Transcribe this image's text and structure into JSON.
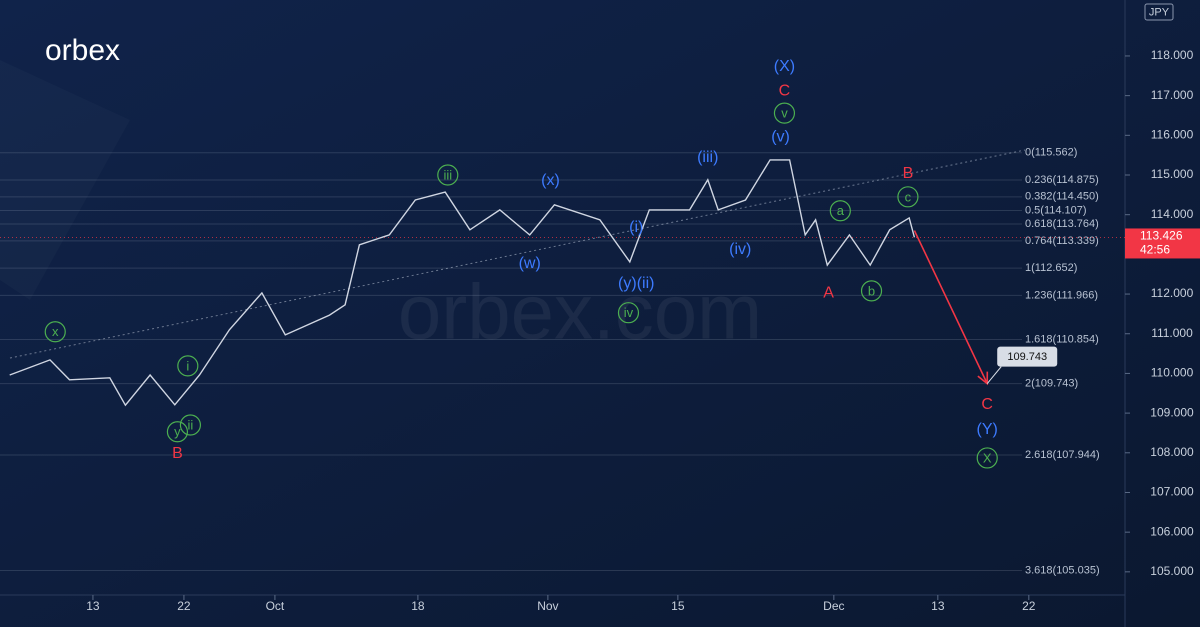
{
  "chart_data": {
    "type": "line",
    "brand": "orbex",
    "watermark": "orbex.com",
    "currency": "JPY",
    "xlim": [
      -7.15,
      79.4
    ],
    "xticks": [
      {
        "value": 0,
        "label": "13"
      },
      {
        "value": 7,
        "label": "22"
      },
      {
        "value": 14,
        "label": "Oct"
      },
      {
        "value": 25,
        "label": "18"
      },
      {
        "value": 35,
        "label": "Nov"
      },
      {
        "value": 45,
        "label": "15"
      },
      {
        "value": 57,
        "label": "Dec"
      },
      {
        "value": 65,
        "label": "13"
      },
      {
        "value": 72,
        "label": "22"
      }
    ],
    "ylim": [
      103.61,
      119.41
    ],
    "yticks": [
      {
        "value": 105,
        "label": "105.000"
      },
      {
        "value": 106,
        "label": "106.000"
      },
      {
        "value": 107,
        "label": "107.000"
      },
      {
        "value": 108,
        "label": "108.000"
      },
      {
        "value": 109,
        "label": "109.000"
      },
      {
        "value": 110,
        "label": "110.000"
      },
      {
        "value": 111,
        "label": "111.000"
      },
      {
        "value": 112,
        "label": "112.000"
      },
      {
        "value": 113,
        "label": "113.000"
      },
      {
        "value": 114,
        "label": "114.000"
      },
      {
        "value": 115,
        "label": "115.000"
      },
      {
        "value": 116,
        "label": "116.000"
      },
      {
        "value": 117,
        "label": "117.000"
      },
      {
        "value": 118,
        "label": "118.000"
      }
    ],
    "series": [
      {
        "color": "#d0d6e2",
        "x": [
          -6.4,
          -3.3,
          -1.8,
          1.3,
          2.5,
          4.4,
          6.3,
          8.2,
          10.5,
          13,
          14.8,
          18.2,
          19.4,
          20.5,
          22.8,
          24.8,
          27.1,
          29,
          31.3,
          33.6,
          35.5,
          39,
          41.3,
          42.8,
          45.9,
          47.3,
          48.1,
          50.2,
          52.1,
          53.6,
          54.8,
          55.6,
          56.5,
          58.2,
          59.8,
          61.3,
          62.8,
          63.2
        ],
        "values": [
          109.96,
          110.34,
          109.84,
          109.89,
          109.2,
          109.96,
          109.21,
          109.96,
          111.1,
          112.03,
          110.97,
          111.47,
          111.73,
          113.24,
          113.49,
          114.37,
          114.57,
          113.62,
          114.12,
          113.49,
          114.25,
          113.87,
          112.81,
          114.12,
          114.12,
          114.88,
          114.12,
          114.37,
          115.38,
          115.38,
          113.49,
          113.87,
          112.73,
          113.49,
          112.73,
          113.62,
          113.92,
          113.43
        ]
      }
    ],
    "last_price": {
      "value": 113.426,
      "countdown": "42:56",
      "color": "#f23645"
    },
    "projection": {
      "x": [
        63.2,
        68.8
      ],
      "values": [
        113.6,
        109.743
      ],
      "color": "#f23645"
    },
    "fib_levels": [
      {
        "label": "0(115.562)",
        "value": 115.562
      },
      {
        "label": "0.236(114.875)",
        "value": 114.875
      },
      {
        "label": "0.382(114.450)",
        "value": 114.45
      },
      {
        "label": "0.5(114.107)",
        "value": 114.107
      },
      {
        "label": "0.618(113.764)",
        "value": 113.764
      },
      {
        "label": "0.764(113.339)",
        "value": 113.339
      },
      {
        "label": "1(112.652)",
        "value": 112.652
      },
      {
        "label": "1.236(111.966)",
        "value": 111.966
      },
      {
        "label": "1.618(110.854)",
        "value": 110.854
      },
      {
        "label": "2(109.743)",
        "value": 109.743
      },
      {
        "label": "2.618(107.944)",
        "value": 107.944
      },
      {
        "label": "3.618(105.035)",
        "value": 105.035
      }
    ],
    "wave_labels": [
      {
        "text": "x",
        "x": -2.9,
        "value": 111.05,
        "color": "#4caf50",
        "circled": true
      },
      {
        "text": "i",
        "x": 7.3,
        "value": 110.19,
        "color": "#4caf50",
        "circled": true
      },
      {
        "text": "ii",
        "x": 7.5,
        "value": 108.7,
        "color": "#4caf50",
        "circled": true
      },
      {
        "text": "y",
        "x": 6.5,
        "value": 108.53,
        "color": "#4caf50",
        "circled": true
      },
      {
        "text": "B",
        "x": 6.5,
        "value": 108.0,
        "color": "#f23645",
        "circled": false
      },
      {
        "text": "iii",
        "x": 27.3,
        "value": 115.0,
        "color": "#4caf50",
        "circled": true
      },
      {
        "text": "(x)",
        "x": 35.2,
        "value": 114.88,
        "color": "#3d7bff",
        "circled": false
      },
      {
        "text": "(w)",
        "x": 33.6,
        "value": 112.79,
        "color": "#3d7bff",
        "circled": false
      },
      {
        "text": "(i)",
        "x": 41.8,
        "value": 113.69,
        "color": "#3d7bff",
        "circled": false
      },
      {
        "text": "(y)(ii)",
        "x": 41.8,
        "value": 112.28,
        "color": "#3d7bff",
        "circled": false
      },
      {
        "text": "iv",
        "x": 41.2,
        "value": 111.53,
        "color": "#4caf50",
        "circled": true
      },
      {
        "text": "(iii)",
        "x": 47.3,
        "value": 115.46,
        "color": "#3d7bff",
        "circled": false
      },
      {
        "text": "(iv)",
        "x": 49.8,
        "value": 113.14,
        "color": "#3d7bff",
        "circled": false
      },
      {
        "text": "(v)",
        "x": 52.9,
        "value": 115.98,
        "color": "#3d7bff",
        "circled": false
      },
      {
        "text": "v",
        "x": 53.2,
        "value": 116.56,
        "color": "#4caf50",
        "circled": true
      },
      {
        "text": "C",
        "x": 53.2,
        "value": 117.14,
        "color": "#f23645",
        "circled": false
      },
      {
        "text": "(X)",
        "x": 53.2,
        "value": 117.75,
        "color": "#3d7bff",
        "circled": false
      },
      {
        "text": "a",
        "x": 57.5,
        "value": 114.1,
        "color": "#4caf50",
        "circled": true
      },
      {
        "text": "b",
        "x": 59.9,
        "value": 112.08,
        "color": "#4caf50",
        "circled": true
      },
      {
        "text": "A",
        "x": 56.6,
        "value": 112.05,
        "color": "#f23645",
        "circled": false
      },
      {
        "text": "B",
        "x": 62.7,
        "value": 115.05,
        "color": "#f23645",
        "circled": false
      },
      {
        "text": "c",
        "x": 62.7,
        "value": 114.45,
        "color": "#4caf50",
        "circled": true
      },
      {
        "text": "C",
        "x": 68.8,
        "value": 109.23,
        "color": "#f23645",
        "circled": false
      },
      {
        "text": "(Y)",
        "x": 68.8,
        "value": 108.6,
        "color": "#3d7bff",
        "circled": false
      },
      {
        "text": "X",
        "x": 68.8,
        "value": 107.87,
        "color": "#4caf50",
        "circled": true
      }
    ]
  }
}
